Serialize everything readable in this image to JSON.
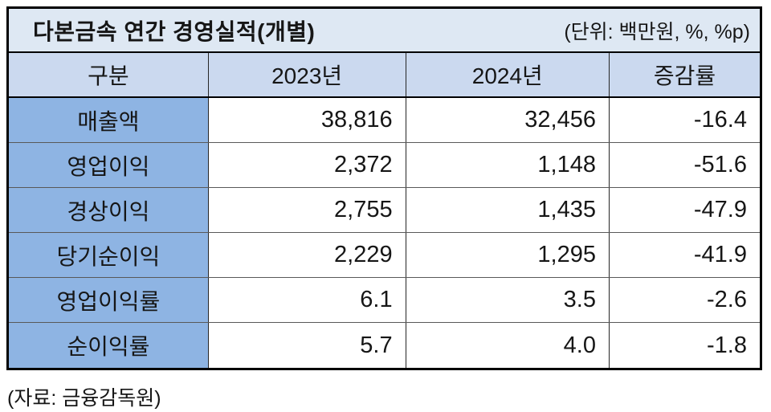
{
  "colors": {
    "title_bg": "#DEE8F3",
    "header_bg": "#CBD9EF",
    "label_bg": "#8EB4E3"
  },
  "table": {
    "title": "다본금속 연간 경영실적(개별)",
    "unit_note": "(단위: 백만원, %, %p)",
    "columns": [
      "구분",
      "2023년",
      "2024년",
      "증감률"
    ],
    "rows": [
      {
        "label": "매출액",
        "y2023": "38,816",
        "y2024": "32,456",
        "change": "-16.4"
      },
      {
        "label": "영업이익",
        "y2023": "2,372",
        "y2024": "1,148",
        "change": "-51.6"
      },
      {
        "label": "경상이익",
        "y2023": "2,755",
        "y2024": "1,435",
        "change": "-47.9"
      },
      {
        "label": "당기순이익",
        "y2023": "2,229",
        "y2024": "1,295",
        "change": "-41.9"
      },
      {
        "label": "영업이익률",
        "y2023": "6.1",
        "y2024": "3.5",
        "change": "-2.6"
      },
      {
        "label": "순이익률",
        "y2023": "5.7",
        "y2024": "4.0",
        "change": "-1.8"
      }
    ]
  },
  "footer": {
    "source_note": "(자료: 금융감독원)"
  },
  "chart_data": {
    "type": "table",
    "title": "다본금속 연간 경영실적(개별)",
    "unit": "(단위: 백만원, %, %p)",
    "columns": [
      "구분",
      "2023년",
      "2024년",
      "증감률"
    ],
    "rows": [
      [
        "매출액",
        38816,
        32456,
        -16.4
      ],
      [
        "영업이익",
        2372,
        1148,
        -51.6
      ],
      [
        "경상이익",
        2755,
        1435,
        -47.9
      ],
      [
        "당기순이익",
        2229,
        1295,
        -41.9
      ],
      [
        "영업이익률",
        6.1,
        3.5,
        -2.6
      ],
      [
        "순이익률",
        5.7,
        4.0,
        -1.8
      ]
    ],
    "source": "(자료: 금융감독원)"
  }
}
